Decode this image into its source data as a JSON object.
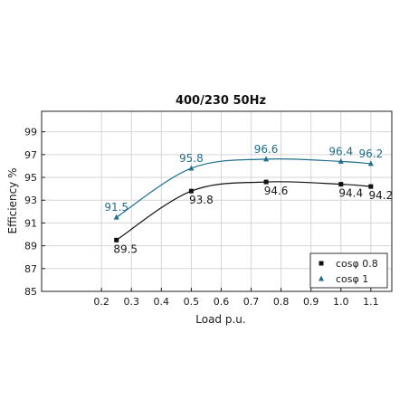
{
  "chart_data": {
    "type": "line",
    "title": "400/230 50Hz",
    "xlabel": "Load p.u.",
    "ylabel": "Efficiency %",
    "xlim": [
      0.0,
      1.17
    ],
    "ylim": [
      85,
      100.8
    ],
    "xticks": [
      0.2,
      0.3,
      0.4,
      0.5,
      0.6,
      0.7,
      0.8,
      0.9,
      1.0,
      1.1
    ],
    "xtick_labels": [
      "0.2",
      "0.3",
      "0.4",
      "0.5",
      "0.6",
      "0.7",
      "0.8",
      "0.9",
      "1.0",
      "1.1"
    ],
    "yticks": [
      85,
      87,
      89,
      91,
      93,
      95,
      97,
      99
    ],
    "ytick_labels": [
      "85",
      "87",
      "89",
      "91",
      "93",
      "95",
      "97",
      "99"
    ],
    "grid": true,
    "legend_position": "bottom-right",
    "series": [
      {
        "name": "cosφ 0.8",
        "marker": "square",
        "color": "#111111",
        "label_color": "#1a1a1a",
        "x": [
          0.25,
          0.5,
          0.75,
          1.0,
          1.1
        ],
        "y": [
          89.5,
          93.8,
          94.6,
          94.4,
          94.2
        ],
        "labels": [
          "89.5",
          "93.8",
          "94.6",
          "94.4",
          "94.2"
        ]
      },
      {
        "name": "cosφ 1",
        "marker": "triangle",
        "color": "#1f6e8c",
        "label_color": "#1f6e8c",
        "x": [
          0.25,
          0.5,
          0.75,
          1.0,
          1.1
        ],
        "y": [
          91.5,
          95.8,
          96.6,
          96.4,
          96.2
        ],
        "labels": [
          "91.5",
          "95.8",
          "96.6",
          "96.4",
          "96.2"
        ]
      }
    ]
  }
}
